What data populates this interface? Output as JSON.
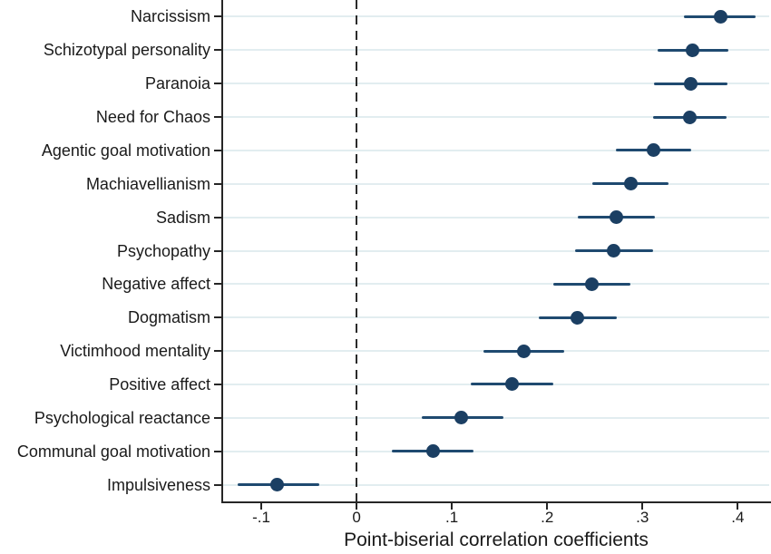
{
  "figure": {
    "description": "Horizontal dot-and-whisker (forest) plot of point-biserial correlation coefficients with 95% confidence intervals, dashed reference line at zero"
  },
  "chart_data": {
    "type": "scatter",
    "variant": "horizontal dot-whisker forest plot with error bars",
    "title": "",
    "xlabel": "Point-biserial correlation coefficients",
    "ylabel": "",
    "xlim": [
      -0.14,
      0.433
    ],
    "x_ticks": [
      -0.1,
      0,
      0.1,
      0.2,
      0.3,
      0.4
    ],
    "x_tick_labels": [
      "-.1",
      "0",
      ".1",
      ".2",
      ".3",
      ".4"
    ],
    "grid": "light horizontal gridline at each category row",
    "legend_position": "none",
    "zero_reference_line": true,
    "categories": [
      "Narcissism",
      "Schizotypal personality",
      "Paranoia",
      "Need for Chaos",
      "Agentic goal motivation",
      "Machiavellianism",
      "Sadism",
      "Psychopathy",
      "Negative affect",
      "Dogmatism",
      "Victimhood mentality",
      "Positive affect",
      "Psychological reactance",
      "Communal goal motivation",
      "Impulsiveness"
    ],
    "series": [
      {
        "name": "Point-biserial correlation (dot = estimate, whisker = 95% CI)",
        "values": [
          0.382,
          0.353,
          0.351,
          0.35,
          0.312,
          0.288,
          0.273,
          0.27,
          0.247,
          0.232,
          0.176,
          0.163,
          0.11,
          0.08,
          -0.083
        ],
        "ci_low": [
          0.344,
          0.316,
          0.312,
          0.311,
          0.272,
          0.247,
          0.232,
          0.229,
          0.206,
          0.191,
          0.133,
          0.12,
          0.068,
          0.037,
          -0.125
        ],
        "ci_high": [
          0.419,
          0.39,
          0.389,
          0.388,
          0.351,
          0.327,
          0.313,
          0.311,
          0.287,
          0.273,
          0.218,
          0.206,
          0.154,
          0.123,
          -0.039
        ]
      }
    ]
  },
  "colors": {
    "marker": "#1b3f63",
    "ci_line": "#1f4a70",
    "gridline": "#e2edf0",
    "axis": "#262626",
    "zero_line": "#2b2b2b",
    "text": "#1a1a1a",
    "background": "#ffffff"
  }
}
